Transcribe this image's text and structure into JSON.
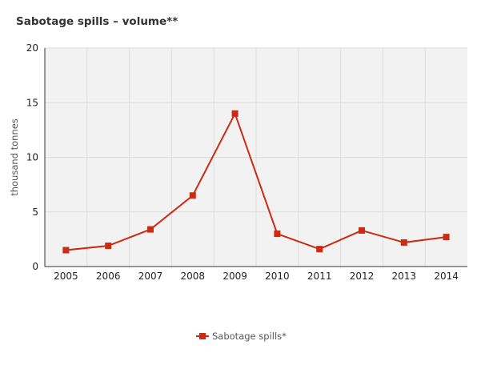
{
  "chart_data": {
    "type": "line",
    "title": "Sabotage spills – volume**",
    "xlabel": "",
    "ylabel": "thousand tonnes",
    "categories": [
      "2005",
      "2006",
      "2007",
      "2008",
      "2009",
      "2010",
      "2011",
      "2012",
      "2013",
      "2014"
    ],
    "series": [
      {
        "name": "Sabotage spills*",
        "values": [
          1.5,
          1.9,
          3.4,
          6.5,
          14.0,
          3.0,
          1.6,
          3.3,
          2.2,
          2.7
        ],
        "color": "#cc2a12",
        "marker": "square"
      }
    ],
    "ylim": [
      0,
      20
    ],
    "yticks": [
      0,
      5,
      10,
      15,
      20
    ],
    "grid": true,
    "legend": "bottom-center",
    "colors": {
      "plot_background": "#f2f2f2",
      "grid": "#dddddd",
      "axis": "#333333"
    }
  }
}
